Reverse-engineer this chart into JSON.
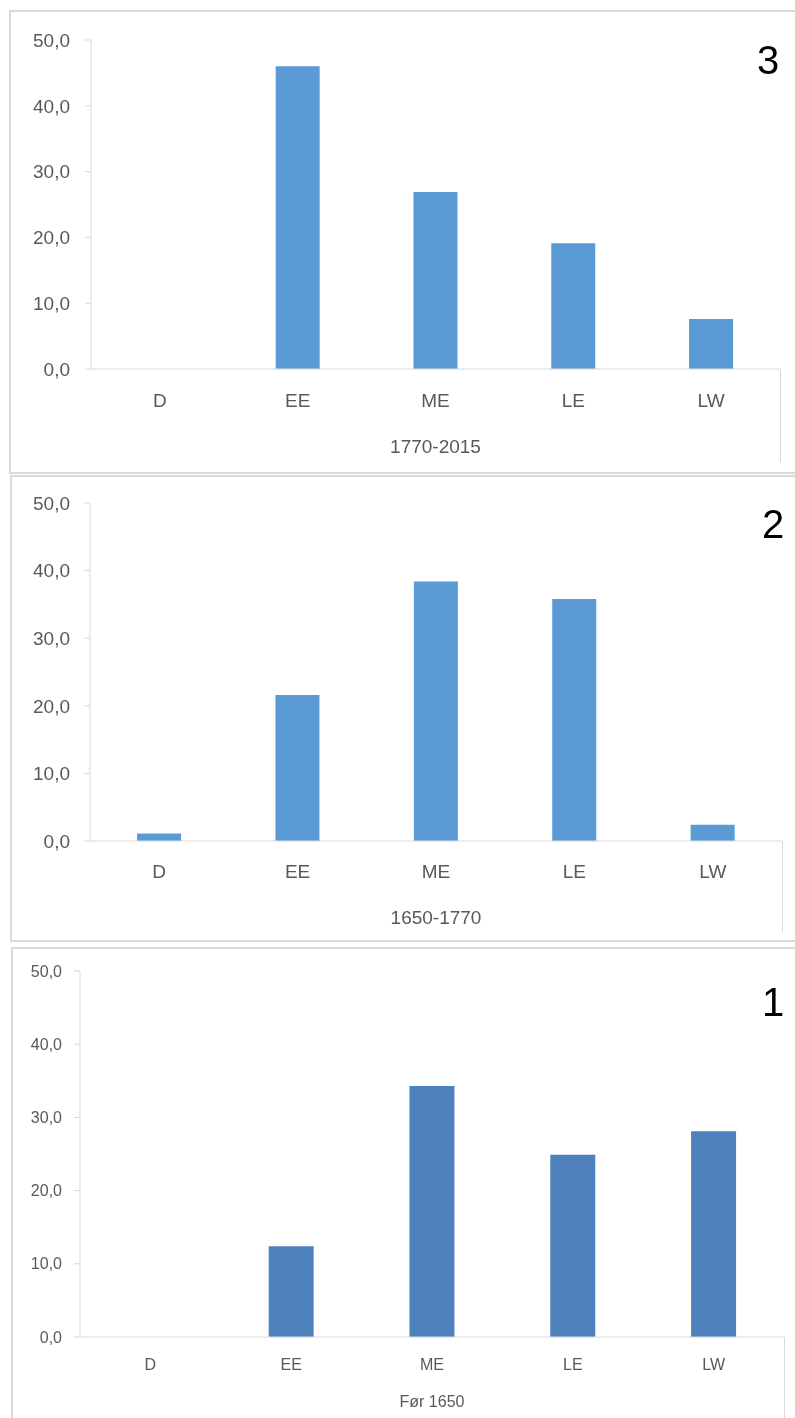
{
  "chart_data": [
    {
      "type": "bar",
      "categories": [
        "D",
        "EE",
        "ME",
        "LE",
        "LW"
      ],
      "values": [
        0,
        46.0,
        26.9,
        19.1,
        7.6
      ],
      "color": "#5b9bd5",
      "ylim": [
        0,
        50
      ],
      "yticks": [
        {
          "value": 0,
          "label": "0,0"
        },
        {
          "value": 10,
          "label": "10,0"
        },
        {
          "value": 20,
          "label": "20,0"
        },
        {
          "value": 30,
          "label": "30,0"
        },
        {
          "value": 40,
          "label": "40,0"
        },
        {
          "value": 50,
          "label": "50,0"
        }
      ],
      "xlabel": "1770-2015",
      "annotations": [
        "3"
      ]
    },
    {
      "type": "bar",
      "categories": [
        "D",
        "EE",
        "ME",
        "LE",
        "LW"
      ],
      "values": [
        1.1,
        21.6,
        38.4,
        35.8,
        2.4
      ],
      "color": "#5b9bd5",
      "ylim": [
        0,
        50
      ],
      "yticks": [
        {
          "value": 0,
          "label": "0,0"
        },
        {
          "value": 10,
          "label": "10,0"
        },
        {
          "value": 20,
          "label": "20,0"
        },
        {
          "value": 30,
          "label": "30,0"
        },
        {
          "value": 40,
          "label": "40,0"
        },
        {
          "value": 50,
          "label": "50,0"
        }
      ],
      "xlabel": "1650-1770",
      "annotations": [
        "2"
      ]
    },
    {
      "type": "bar",
      "categories": [
        "D",
        "EE",
        "ME",
        "LE",
        "LW"
      ],
      "values": [
        0,
        12.4,
        34.3,
        24.9,
        28.1
      ],
      "color": "#4f81bd",
      "ylim": [
        0,
        50
      ],
      "yticks": [
        {
          "value": 0,
          "label": "0,0"
        },
        {
          "value": 10,
          "label": "10,0"
        },
        {
          "value": 20,
          "label": "20,0"
        },
        {
          "value": 30,
          "label": "30,0"
        },
        {
          "value": 40,
          "label": "40,0"
        },
        {
          "value": 50,
          "label": "50,0"
        }
      ],
      "xlabel": "Før 1650",
      "annotations": [
        "1"
      ]
    }
  ]
}
